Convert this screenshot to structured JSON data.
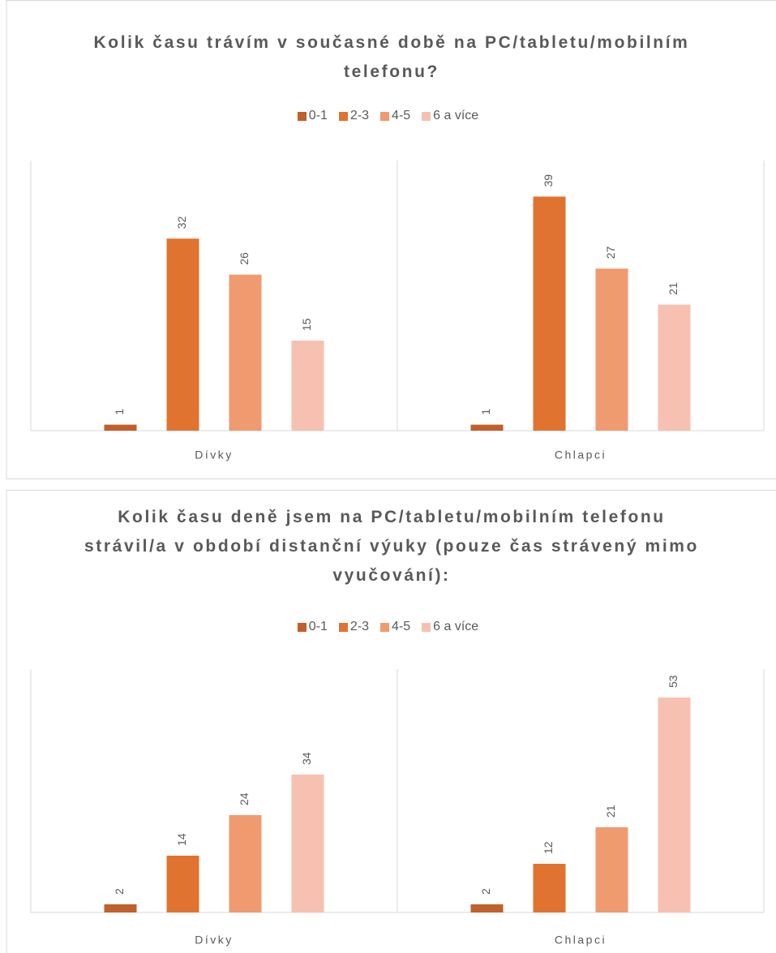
{
  "chart_data": [
    {
      "type": "bar",
      "title": "Kolik času trávím v současné době na PC/tabletu/mobilním telefonu?",
      "categories": [
        "Dívky",
        "Chlapci"
      ],
      "series": [
        {
          "name": "0-1",
          "color": "#c0602a",
          "values": [
            1,
            1
          ]
        },
        {
          "name": "2-3",
          "color": "#e0732f",
          "values": [
            32,
            39
          ]
        },
        {
          "name": "4-5",
          "color": "#f09a6f",
          "values": [
            26,
            27
          ]
        },
        {
          "name": "6 a více",
          "color": "#f6c1b0",
          "values": [
            15,
            21
          ]
        }
      ],
      "ylim": [
        0,
        45
      ]
    },
    {
      "type": "bar",
      "title": "Kolik času deně jsem na PC/tabletu/mobilním telefonu strávil/a v období distanční výuky (pouze čas strávený mimo vyučování):",
      "categories": [
        "Dívky",
        "Chlapci"
      ],
      "series": [
        {
          "name": "0-1",
          "color": "#c0602a",
          "values": [
            2,
            2
          ]
        },
        {
          "name": "2-3",
          "color": "#e0732f",
          "values": [
            14,
            12
          ]
        },
        {
          "name": "4-5",
          "color": "#f09a6f",
          "values": [
            24,
            21
          ]
        },
        {
          "name": "6 a více",
          "color": "#f6c1b0",
          "values": [
            34,
            53
          ]
        }
      ],
      "ylim": [
        0,
        60
      ]
    }
  ]
}
